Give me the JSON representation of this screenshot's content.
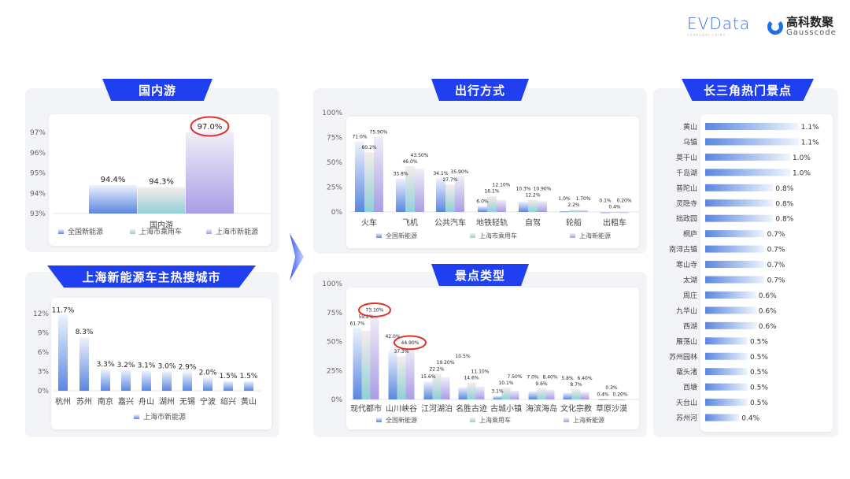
{
  "logos": {
    "evdata": "EVData",
    "evdata_sub": "SHANGHAI CHINA",
    "gauss_cn": "高科数聚",
    "gauss_en": "Gausscode"
  },
  "colors": {
    "banner": "#1f3ff0",
    "series1": "#5b86e0",
    "series2": "#8fd0d6",
    "series3": "#a99de6",
    "highlight": "#e0302a"
  },
  "chart_data": [
    {
      "id": "domestic",
      "type": "bar",
      "title": "国内游",
      "categories": [
        "国内游"
      ],
      "ylim": [
        93,
        97
      ],
      "yticks": [
        "93%",
        "94%",
        "95%",
        "96%",
        "97%"
      ],
      "series": [
        {
          "name": "全国新能源",
          "values": [
            94.4
          ],
          "labels": [
            "94.4%"
          ]
        },
        {
          "name": "上海市乘用车",
          "values": [
            94.3
          ],
          "labels": [
            "94.3%"
          ]
        },
        {
          "name": "上海市新能源",
          "values": [
            97.0
          ],
          "labels": [
            "97.0%"
          ]
        }
      ],
      "highlighted": [
        "97.0%"
      ],
      "legend": "bottom"
    },
    {
      "id": "cities",
      "type": "bar",
      "title": "上海新能源车主热搜城市",
      "categories": [
        "杭州",
        "苏州",
        "南京",
        "嘉兴",
        "舟山",
        "湖州",
        "无锡",
        "宁波",
        "绍兴",
        "黄山"
      ],
      "ylim": [
        0,
        12
      ],
      "yticks": [
        "0%",
        "3%",
        "6%",
        "9%",
        "12%"
      ],
      "series": [
        {
          "name": "上海市新能源",
          "values": [
            11.7,
            8.3,
            3.3,
            3.2,
            3.1,
            3.0,
            2.9,
            2.0,
            1.5,
            1.5
          ],
          "labels": [
            "11.7%",
            "8.3%",
            "3.3%",
            "3.2%",
            "3.1%",
            "3.0%",
            "2.9%",
            "2.0%",
            "1.5%",
            "1.5%"
          ]
        }
      ],
      "legend": "bottom"
    },
    {
      "id": "travel",
      "type": "bar",
      "title": "出行方式",
      "categories": [
        "火车",
        "飞机",
        "公共汽车",
        "地铁轻轨",
        "自驾",
        "轮船",
        "出租车"
      ],
      "ylim": [
        0,
        100
      ],
      "yticks": [
        "0%",
        "25%",
        "50%",
        "75%",
        "100%"
      ],
      "series": [
        {
          "name": "全国新能源",
          "values": [
            71.0,
            33.8,
            34.1,
            6.0,
            10.3,
            1.0,
            0.1
          ],
          "labels": [
            "71.0%",
            "33.8%",
            "34.1%",
            "6.0%",
            "10.3%",
            "1.0%",
            "0.1%"
          ]
        },
        {
          "name": "上海市乘用车",
          "values": [
            60.2,
            46.0,
            27.7,
            16.1,
            12.2,
            2.2,
            0.4
          ],
          "labels": [
            "60.2%",
            "46.0%",
            "27.7%",
            "16.1%",
            "12.2%",
            "2.2%",
            "0.4%"
          ]
        },
        {
          "name": "上海新能源",
          "values": [
            75.9,
            43.5,
            35.9,
            12.1,
            10.9,
            1.7,
            0.2
          ],
          "labels": [
            "75.90%",
            "43.50%",
            "35.90%",
            "12.10%",
            "10.90%",
            "1.70%",
            "0.20%"
          ]
        }
      ],
      "legend": "bottom"
    },
    {
      "id": "scenic",
      "type": "bar",
      "title": "景点类型",
      "categories": [
        "现代都市",
        "山川峡谷",
        "江河湖泊",
        "名胜古迹",
        "古城小镇",
        "海滨海岛",
        "文化宗教",
        "草原沙漠"
      ],
      "ylim": [
        0,
        100
      ],
      "yticks": [
        "0%",
        "25%",
        "50%",
        "75%",
        "100%"
      ],
      "series": [
        {
          "name": "全国新能源",
          "values": [
            61.7,
            42.0,
            15.6,
            10.5,
            3.1,
            7.0,
            5.8,
            0.4
          ],
          "labels": [
            "61.7%",
            "42.0%",
            "15.6%",
            "10.5%",
            "3.1%",
            "7.0%",
            "5.8%",
            "0.4%"
          ]
        },
        {
          "name": "上海乘用车",
          "values": [
            59.2,
            37.3,
            22.2,
            14.6,
            10.1,
            9.6,
            8.7,
            0.3
          ],
          "labels": [
            "59.2%",
            "37.3%",
            "22.2%",
            "14.6%",
            "10.1%",
            "9.6%",
            "8.7%",
            "0.3%"
          ]
        },
        {
          "name": "上海新能源",
          "values": [
            73.1,
            44.9,
            19.2,
            11.1,
            7.5,
            8.4,
            6.4,
            0.2
          ],
          "labels": [
            "73.10%",
            "44.90%",
            "19.20%",
            "11.10%",
            "7.50%",
            "8.40%",
            "6.40%",
            "0.20%"
          ]
        }
      ],
      "highlighted": [
        "73.10%",
        "44.90%"
      ],
      "legend": "bottom"
    },
    {
      "id": "hotspots",
      "type": "bar",
      "orientation": "horizontal",
      "title": "长三角热门景点",
      "categories": [
        "黄山",
        "乌镇",
        "莫干山",
        "千岛湖",
        "普陀山",
        "灵隐寺",
        "拙政园",
        "桐庐",
        "南浔古镇",
        "寒山寺",
        "太湖",
        "周庄",
        "九华山",
        "西湖",
        "雁荡山",
        "苏州园林",
        "鼋头渚",
        "西塘",
        "天台山",
        "苏州河"
      ],
      "values": [
        1.1,
        1.1,
        1.0,
        1.0,
        0.8,
        0.8,
        0.8,
        0.7,
        0.7,
        0.7,
        0.7,
        0.6,
        0.6,
        0.6,
        0.5,
        0.5,
        0.5,
        0.5,
        0.5,
        0.4
      ],
      "labels": [
        "1.1%",
        "1.1%",
        "1.0%",
        "1.0%",
        "0.8%",
        "0.8%",
        "0.8%",
        "0.7%",
        "0.7%",
        "0.7%",
        "0.7%",
        "0.6%",
        "0.6%",
        "0.6%",
        "0.5%",
        "0.5%",
        "0.5%",
        "0.5%",
        "0.5%",
        "0.4%"
      ]
    }
  ]
}
